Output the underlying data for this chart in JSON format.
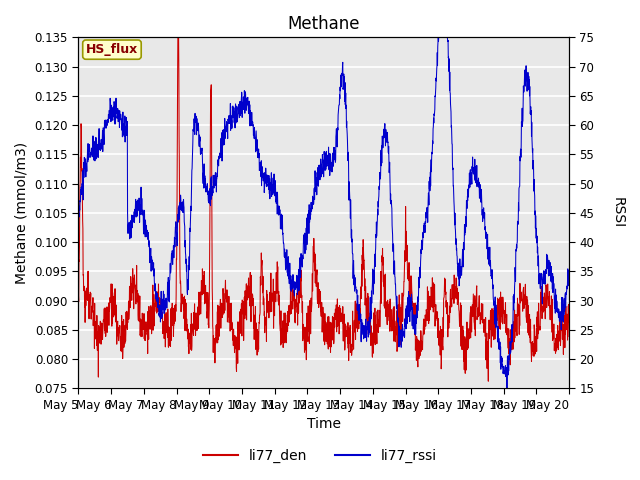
{
  "title": "Methane",
  "xlabel": "Time",
  "ylabel_left": "Methane (mmol/m3)",
  "ylabel_right": "RSSI",
  "ylim_left": [
    0.075,
    0.135
  ],
  "ylim_right": [
    15,
    75
  ],
  "yticks_left": [
    0.075,
    0.08,
    0.085,
    0.09,
    0.095,
    0.1,
    0.105,
    0.11,
    0.115,
    0.12,
    0.125,
    0.13,
    0.135
  ],
  "yticks_right": [
    15,
    20,
    25,
    30,
    35,
    40,
    45,
    50,
    55,
    60,
    65,
    70,
    75
  ],
  "xtick_labels": [
    "May 5",
    "May 6",
    "May 7",
    "May 8",
    "May 9",
    "May 10",
    "May 11",
    "May 12",
    "May 13",
    "May 14",
    "May 15",
    "May 16",
    "May 17",
    "May 18",
    "May 19",
    "May 20"
  ],
  "legend_labels": [
    "li77_den",
    "li77_rssi"
  ],
  "line_colors": [
    "#cc0000",
    "#0000cc"
  ],
  "annotation_text": "HS_flux",
  "annotation_bg": "#ffffcc",
  "annotation_border": "#999900",
  "bg_color": "#e8e8e8",
  "grid_color": "white",
  "title_fontsize": 12,
  "axis_fontsize": 10,
  "tick_fontsize": 8.5,
  "legend_fontsize": 10
}
